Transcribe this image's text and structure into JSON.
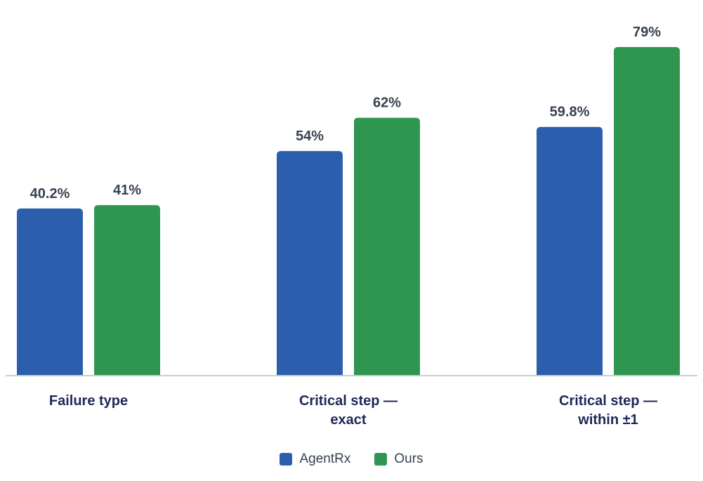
{
  "chart_data": {
    "type": "bar",
    "categories": [
      [
        "Failure type"
      ],
      [
        "Critical step —",
        "exact"
      ],
      [
        "Critical step —",
        "within ±1"
      ]
    ],
    "series": [
      {
        "name": "AgentRx",
        "values": [
          40.2,
          54,
          59.8
        ],
        "value_labels": [
          "40.2%",
          "54%",
          "59.8%"
        ],
        "color": "#2b5fad"
      },
      {
        "name": "Ours",
        "values": [
          41,
          62,
          79
        ],
        "value_labels": [
          "41%",
          "62%",
          "79%"
        ],
        "color": "#2e9650"
      }
    ],
    "ylim": [
      0,
      100
    ],
    "grid": false,
    "legend_position": "bottom-center",
    "baseline_color": "#c9ccd1"
  }
}
